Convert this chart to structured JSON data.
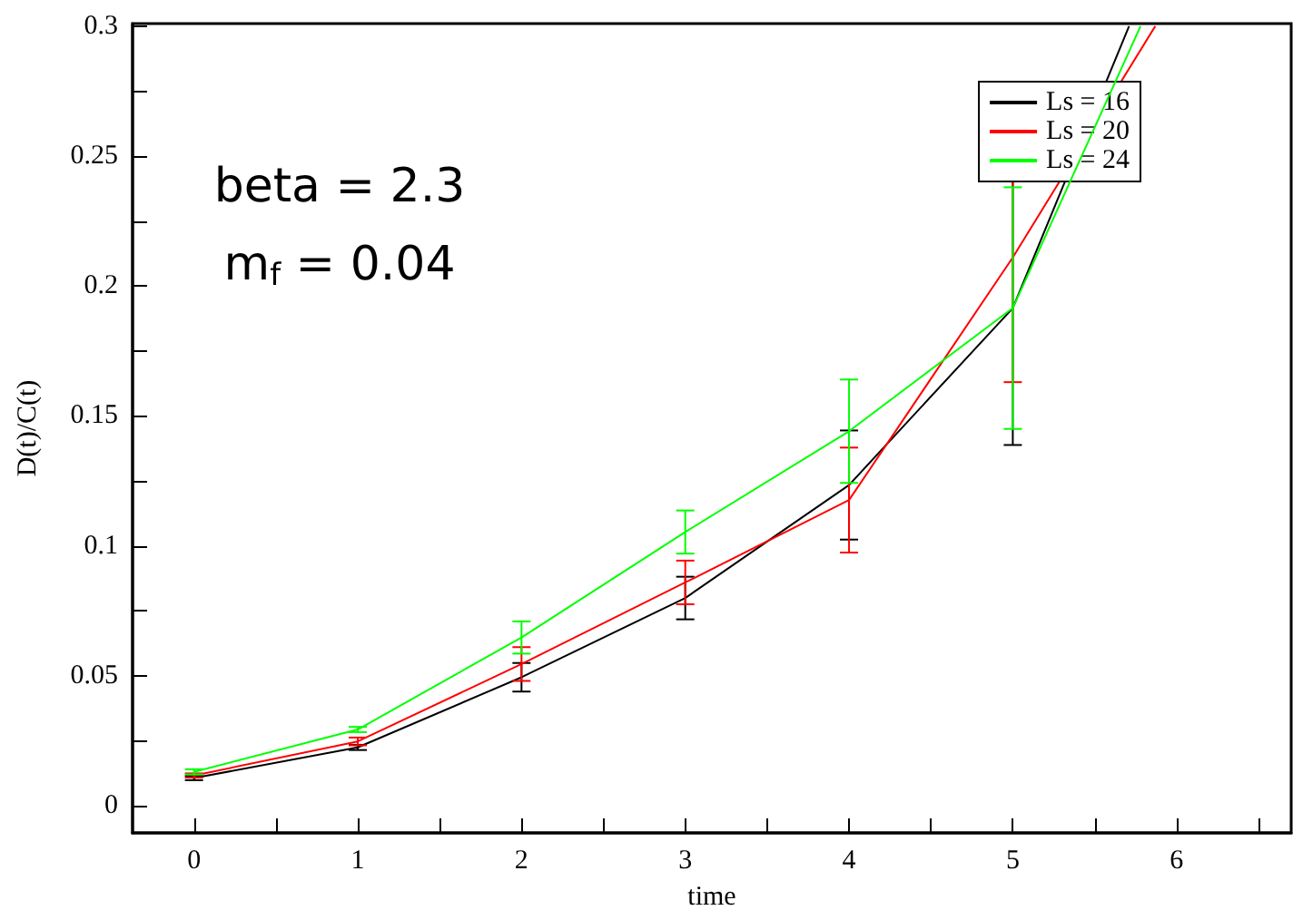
{
  "chart_data": {
    "type": "line",
    "xlabel": "time",
    "ylabel": "D(t)/C(t)",
    "xlim": [
      -0.375,
      6.7
    ],
    "ylim": [
      -0.0105,
      0.301
    ],
    "xticks": [
      0,
      {
        "value": 0.5,
        "label": null
      },
      1,
      {
        "value": 1.5,
        "label": null
      },
      2,
      {
        "value": 2.5,
        "label": null
      },
      3,
      {
        "value": 3.5,
        "label": null
      },
      4,
      {
        "value": 4.5,
        "label": null
      },
      5,
      {
        "value": 5.5,
        "label": null
      },
      6,
      {
        "value": 6.5,
        "label": null
      }
    ],
    "yticks": [
      0,
      {
        "value": 0.025,
        "label": null
      },
      0.05,
      {
        "value": 0.075,
        "label": null
      },
      0.1,
      {
        "value": 0.125,
        "label": null
      },
      0.15,
      {
        "value": 0.175,
        "label": null
      },
      0.2,
      {
        "value": 0.225,
        "label": null
      },
      0.25,
      {
        "value": 0.275,
        "label": null
      },
      0.3
    ],
    "grid": false,
    "legend": "top right",
    "marker": "none",
    "line_style": "solid",
    "annotations": [
      "beta = 2.3",
      "m$_{f}$ = 0.04"
    ],
    "series": [
      {
        "name": "Ls = 16",
        "color": "#000000",
        "x": [
          0,
          1,
          2,
          3,
          4,
          5,
          5.71
        ],
        "values": [
          0.0106,
          0.0224,
          0.0494,
          0.0799,
          0.1234,
          0.1915,
          0.3
        ],
        "errors": [
          0.0008,
          0.001,
          0.0055,
          0.0082,
          0.021,
          0.0527,
          null
        ]
      },
      {
        "name": "Ls = 20",
        "color": "#ff0000",
        "x": [
          0,
          1,
          2,
          3,
          4,
          5,
          5.87
        ],
        "values": [
          0.0116,
          0.0247,
          0.0545,
          0.0859,
          0.1176,
          0.211,
          0.3
        ],
        "errors": [
          0.0008,
          0.0015,
          0.0065,
          0.0084,
          0.0202,
          0.048,
          null
        ]
      },
      {
        "name": "Ls = 24",
        "color": "#00ff00",
        "x": [
          0,
          1,
          2,
          3,
          4,
          5,
          5.78
        ],
        "values": [
          0.013,
          0.0293,
          0.0647,
          0.1053,
          0.1441,
          0.1915,
          0.3
        ],
        "errors": [
          0.001,
          0.001,
          0.0062,
          0.0083,
          0.0199,
          0.0465,
          null
        ]
      }
    ]
  }
}
